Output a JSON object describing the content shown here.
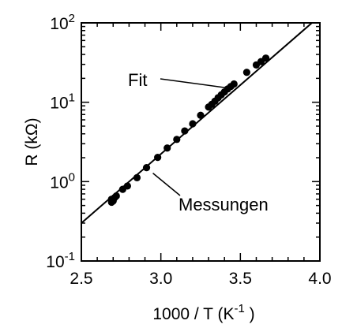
{
  "chart_data": {
    "type": "scatter",
    "title": "",
    "xlabel": {
      "main": "1000 / T  (K",
      "sup": "-1",
      "tail": " )"
    },
    "ylabel": "R  (kΩ)",
    "xlim": [
      2.5,
      4.0
    ],
    "ylim": [
      0.1,
      100
    ],
    "yscale": "log",
    "grid": false,
    "x_ticks": [
      "2.5",
      "3.0",
      "3.5",
      "4.0"
    ],
    "y_ticks": [
      {
        "base": "10",
        "exp": "-1",
        "value": 0.1
      },
      {
        "base": "10",
        "exp": "0",
        "value": 1
      },
      {
        "base": "10",
        "exp": "1",
        "value": 10
      },
      {
        "base": "10",
        "exp": "2",
        "value": 100
      }
    ],
    "series": [
      {
        "name": "Messungen",
        "kind": "scatter",
        "x": [
          2.69,
          2.69,
          2.7,
          2.71,
          2.72,
          2.76,
          2.79,
          2.85,
          2.91,
          2.98,
          3.04,
          3.1,
          3.15,
          3.2,
          3.25,
          3.3,
          3.32,
          3.34,
          3.36,
          3.38,
          3.4,
          3.42,
          3.44,
          3.46,
          3.54,
          3.6,
          3.63,
          3.66
        ],
        "y": [
          0.55,
          0.6,
          0.57,
          0.63,
          0.66,
          0.8,
          0.88,
          1.12,
          1.5,
          2.02,
          2.65,
          3.4,
          4.35,
          5.35,
          6.85,
          8.7,
          9.4,
          10.3,
          11.4,
          12.4,
          13.5,
          14.7,
          15.8,
          17.0,
          23.8,
          29.5,
          32.5,
          36.0
        ]
      },
      {
        "name": "Fit",
        "kind": "line",
        "x": [
          2.5,
          3.95
        ],
        "y": [
          0.3,
          100
        ]
      }
    ],
    "annotations": [
      {
        "text": "Fit",
        "target": [
          3.44,
          15.3
        ]
      },
      {
        "text": "Messungen",
        "target": [
          2.93,
          1.4
        ]
      }
    ]
  }
}
